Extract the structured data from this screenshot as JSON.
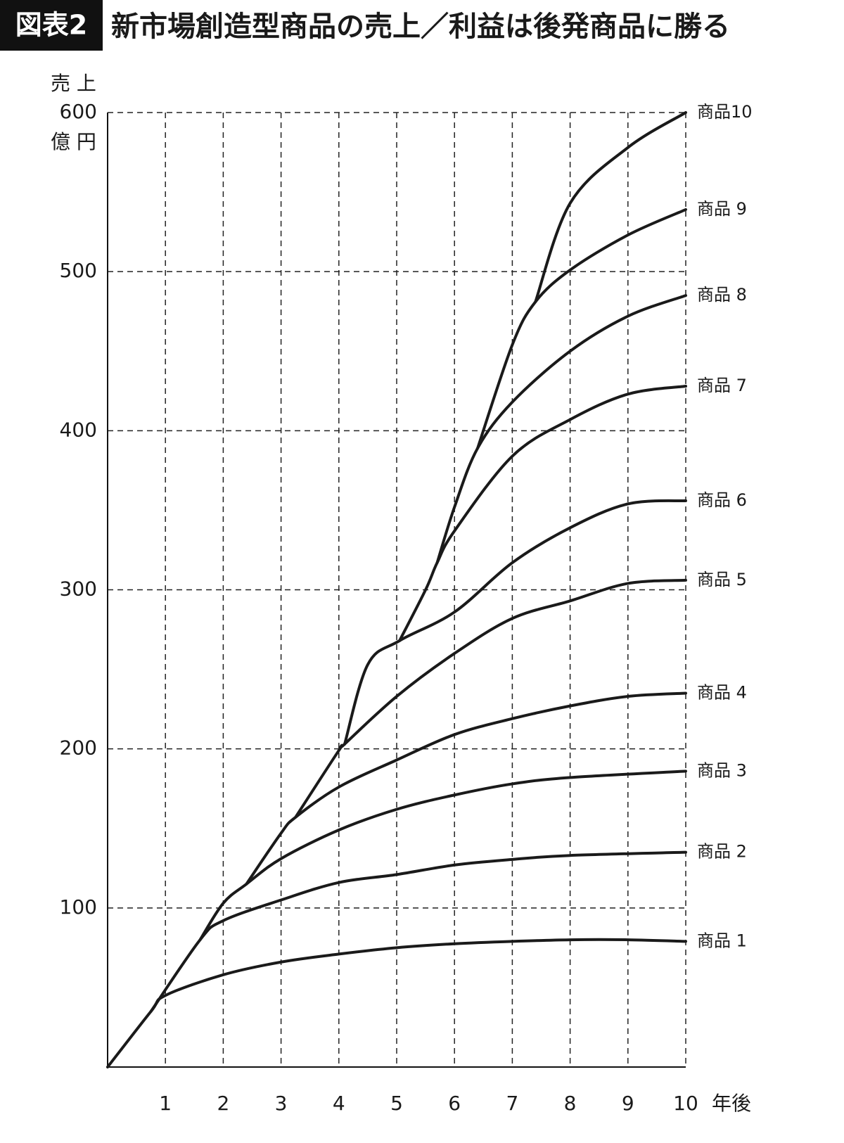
{
  "chart_data": {
    "type": "line",
    "badge": "図表2",
    "title": "新市場創造型商品の売上／利益は後発商品に勝る",
    "y_label": "売 上",
    "y_unit": "億 円",
    "x_label": "年後",
    "xlim": [
      0,
      10
    ],
    "ylim": [
      0,
      600
    ],
    "xticks": [
      1,
      2,
      3,
      4,
      5,
      6,
      7,
      8,
      9,
      10
    ],
    "yticks": [
      100,
      200,
      300,
      400,
      500,
      600
    ],
    "grid": true,
    "series": [
      {
        "name": "商品 1",
        "color": "#1a1a1a",
        "x": [
          0,
          0.75,
          1,
          2,
          3,
          4,
          5,
          6,
          7,
          8,
          9,
          10
        ],
        "values": [
          0,
          35,
          45,
          58,
          66,
          71,
          75,
          77.5,
          79,
          80,
          80,
          79
        ]
      },
      {
        "name": "商品 2",
        "color": "#1a1a1a",
        "x": [
          0.75,
          1.6,
          2,
          3,
          4,
          5,
          6,
          7,
          8,
          10
        ],
        "values": [
          35,
          80,
          92,
          105,
          116,
          121,
          127,
          130.5,
          133,
          135
        ]
      },
      {
        "name": "商品 3",
        "color": "#1a1a1a",
        "x": [
          1.6,
          2,
          2.4,
          3,
          4,
          5,
          6,
          7,
          8,
          10
        ],
        "values": [
          80,
          103,
          115,
          131,
          149,
          162,
          171,
          178,
          182,
          186
        ]
      },
      {
        "name": "商品 4",
        "color": "#1a1a1a",
        "x": [
          2.4,
          3,
          3.25,
          4,
          5,
          6,
          7,
          8,
          9,
          10
        ],
        "values": [
          115,
          147,
          157,
          176,
          193,
          209,
          219,
          227,
          233,
          235
        ]
      },
      {
        "name": "商品 5",
        "color": "#1a1a1a",
        "x": [
          3.25,
          4,
          4.1,
          5,
          6,
          7,
          8,
          9,
          10
        ],
        "values": [
          157,
          199,
          203,
          233,
          260,
          282,
          293,
          304,
          306
        ]
      },
      {
        "name": "商品 6",
        "color": "#1a1a1a",
        "x": [
          4.1,
          4.5,
          5.05,
          6,
          7,
          8,
          9,
          10
        ],
        "values": [
          203,
          253,
          268,
          286,
          317,
          339,
          354,
          356
        ]
      },
      {
        "name": "商品 7",
        "color": "#1a1a1a",
        "x": [
          5.05,
          5.5,
          5.7,
          6,
          7,
          8,
          9,
          10
        ],
        "values": [
          268,
          300,
          317,
          337,
          384,
          407,
          423,
          428
        ]
      },
      {
        "name": "商品 8",
        "color": "#1a1a1a",
        "x": [
          5.7,
          6,
          6.4,
          7,
          8,
          9,
          10
        ],
        "values": [
          317,
          352,
          389,
          418,
          450,
          472,
          485
        ]
      },
      {
        "name": "商品 9",
        "color": "#1a1a1a",
        "x": [
          6.4,
          7,
          7.4,
          8,
          9,
          10
        ],
        "values": [
          389,
          454,
          481,
          501,
          523,
          539
        ]
      },
      {
        "name": "商品10",
        "color": "#1a1a1a",
        "x": [
          7.4,
          8,
          9,
          10
        ],
        "values": [
          481,
          543,
          578,
          600
        ]
      }
    ]
  }
}
